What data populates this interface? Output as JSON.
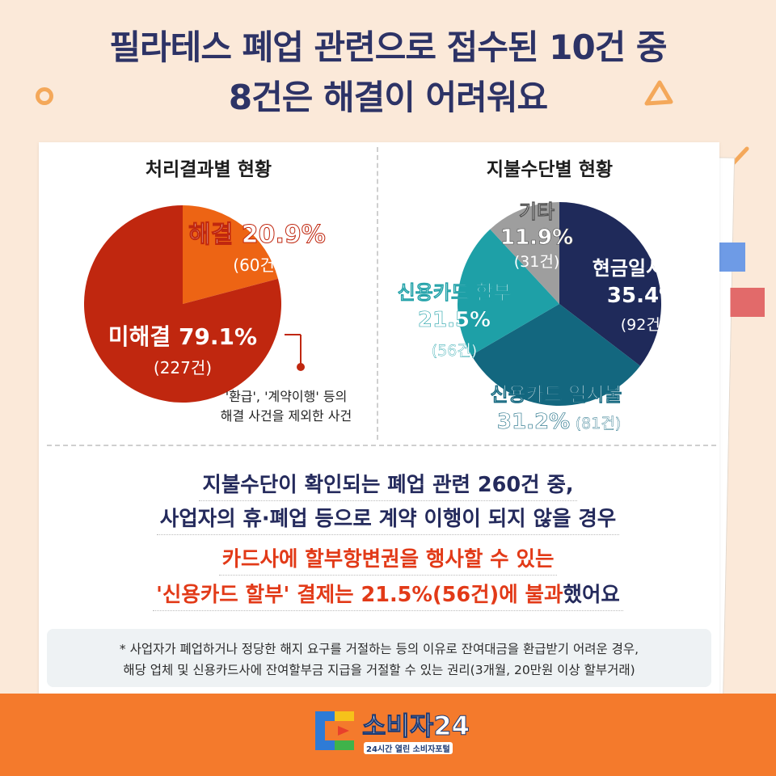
{
  "header": {
    "title_line1": "필라테스 폐업 관련으로 접수된 10건 중",
    "title_line2": "8건은 해결이 어려워요"
  },
  "chart_data": [
    {
      "type": "pie",
      "title": "처리결과별 현황",
      "slices": [
        {
          "name": "해결",
          "percent": 20.9,
          "percent_label": "20.9%",
          "count_label": "(60건)",
          "color": "#ed6414"
        },
        {
          "name": "미해결",
          "percent": 79.1,
          "percent_label": "79.1%",
          "count_label": "(227건)",
          "color": "#c0270f"
        }
      ],
      "annotation_line1": "'환급', '계약이행' 등의",
      "annotation_line2": "해결 사건을 제외한 사건"
    },
    {
      "type": "pie",
      "title": "지불수단별 현황",
      "slices": [
        {
          "name": "현금일시불",
          "percent": 35.4,
          "percent_label": "35.4%",
          "count_label": "(92건)",
          "color": "#1f2a5a"
        },
        {
          "name": "신용카드 일시불",
          "percent": 31.2,
          "percent_label": "31.2%",
          "count_label": "(81건)",
          "color": "#13677f"
        },
        {
          "name": "신용카드 할부",
          "percent": 21.5,
          "percent_label": "21.5%",
          "count_label": "(56건)",
          "color": "#1ea0a7"
        },
        {
          "name": "기타",
          "percent": 11.9,
          "percent_label": "11.9%",
          "count_label": "(31건)",
          "color": "#9e9e9e"
        }
      ]
    }
  ],
  "message": {
    "line1": "지불수단이 확인되는 폐업 관련 260건 중,",
    "line2": "사업자의 휴·폐업 등으로 계약 이행이 되지 않을 경우",
    "line3": "카드사에 할부항변권을 행사할 수 있는",
    "line4_red": "'신용카드 할부' 결제는 21.5%(56건)에 불과",
    "line4_navy": "했어요"
  },
  "footnote": {
    "line1": "* 사업자가 폐업하거나 정당한 해지 요구를 거절하는 등의 이유로 잔여대금을 환급받기 어려운 경우,",
    "line2": "해당 업체 및 신용카드사에 잔여할부금 지급을 거절할 수 있는 권리(3개월, 20만원 이상 할부거래)"
  },
  "footer": {
    "logo_text": "소비자24",
    "logo_sub": "24시간 열린 소비자포털"
  },
  "colors": {
    "background": "#fbe9d9",
    "footer": "#f47a2c",
    "navy": "#242a5c",
    "red": "#e23a18"
  }
}
